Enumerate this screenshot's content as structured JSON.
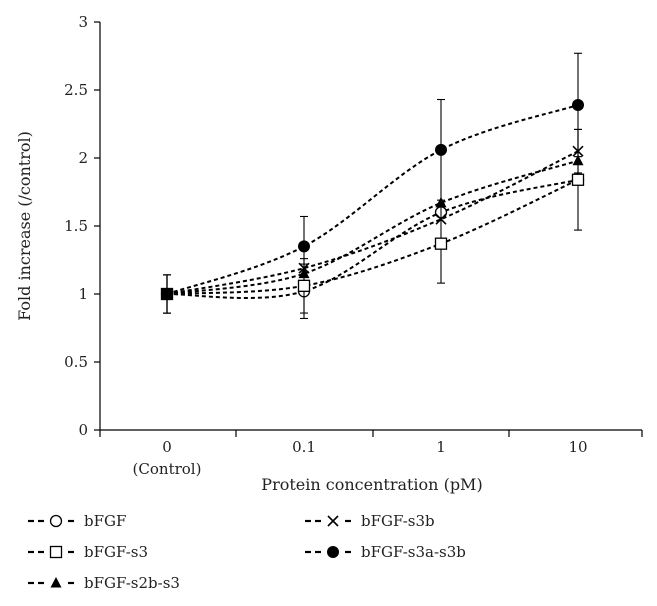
{
  "chart_data": {
    "type": "line",
    "ylabel": "Fold increase (/control)",
    "xlabel": "Protein concentration (pM)",
    "categories": [
      "0",
      "0.1",
      "1",
      "10"
    ],
    "category_sublabels": [
      "(Control)",
      "",
      "",
      ""
    ],
    "ylim": [
      0,
      3
    ],
    "yticks": [
      "0",
      "0.5",
      "1",
      "1.5",
      "2",
      "2.5",
      "3"
    ],
    "series": [
      {
        "name": "bFGF",
        "marker": "open-circle",
        "values": [
          1.0,
          1.02,
          1.6,
          1.84
        ],
        "err": [
          0.14,
          0.2,
          0.0,
          0.0
        ]
      },
      {
        "name": "bFGF-s3",
        "marker": "open-square",
        "values": [
          1.0,
          1.06,
          1.37,
          1.84
        ],
        "err": [
          0.14,
          0.2,
          0.29,
          0.37
        ]
      },
      {
        "name": "bFGF-s2b-s3",
        "marker": "filled-triangle",
        "values": [
          1.0,
          1.15,
          1.67,
          1.98
        ],
        "err": [
          0.14,
          0.0,
          0.0,
          0.0
        ]
      },
      {
        "name": "bFGF-s3b",
        "marker": "cross",
        "values": [
          1.0,
          1.19,
          1.55,
          2.05
        ],
        "err": [
          0.14,
          0.0,
          0.0,
          0.16
        ]
      },
      {
        "name": "bFGF-s3a-s3b",
        "marker": "filled-circle",
        "values": [
          1.0,
          1.35,
          2.06,
          2.39
        ],
        "err": [
          0.14,
          0.22,
          0.37,
          0.38
        ]
      }
    ],
    "legend": {
      "placement": "bottom"
    },
    "grid": false,
    "line_style": "dotted",
    "color": "#000000"
  }
}
